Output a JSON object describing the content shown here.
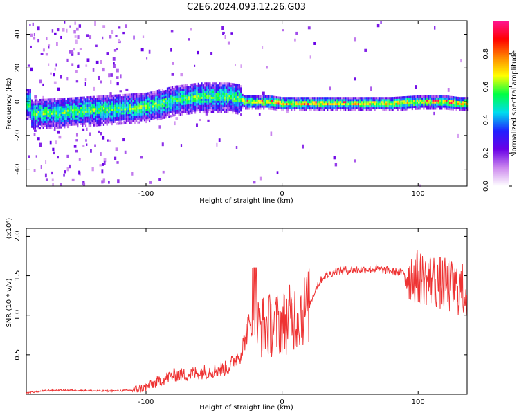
{
  "title": "C2E6.2024.093.12.26.G03",
  "chart_data": [
    {
      "type": "heatmap",
      "xlabel": "Height of straight line (km)",
      "ylabel": "Frequency (Hz)",
      "xlim": [
        -188,
        136
      ],
      "ylim": [
        -50,
        48
      ],
      "x_ticks": [
        -100,
        0,
        100
      ],
      "y_ticks": [
        -40,
        -20,
        0,
        20,
        40
      ],
      "colorbar": {
        "label": "Normalized spectral amplitude",
        "range": [
          0.0,
          1.0
        ],
        "ticks": [
          0.0,
          0.2,
          0.4,
          0.6,
          0.8
        ],
        "colors": [
          "#ffffff",
          "#cc88ee",
          "#6a00e6",
          "#2020ff",
          "#00ddee",
          "#00ff44",
          "#ffff00",
          "#ff8800",
          "#ff0000",
          "#ff1493"
        ]
      },
      "ridge": {
        "x": [
          -185,
          -160,
          -140,
          -120,
          -100,
          -90,
          -80,
          -70,
          -60,
          -50,
          -40,
          -32,
          -28,
          -20,
          -10,
          0,
          20,
          50,
          80,
          100,
          110,
          120,
          130,
          136
        ],
        "y": [
          -7,
          -6,
          -5,
          -4,
          -3,
          -1,
          1,
          2,
          3,
          3,
          3,
          2,
          0,
          0,
          0,
          -1,
          -1,
          -1,
          -1,
          0,
          0,
          0,
          -1,
          -1
        ]
      }
    },
    {
      "type": "line",
      "xlabel": "Height of straight line (km)",
      "ylabel": "SNR (10 * v/v)",
      "y_multiplier": "(x10⁴)",
      "xlim": [
        -188,
        136
      ],
      "ylim": [
        0,
        2.1
      ],
      "x_ticks": [
        -100,
        0,
        100
      ],
      "y_ticks": [
        0.5,
        1.0,
        1.5,
        2.0
      ],
      "y_tick_labels": [
        "0.5",
        "1.0",
        "1.5",
        "2.0"
      ],
      "series": [
        {
          "color": "#ee3333",
          "x": [
            -188,
            -170,
            -150,
            -130,
            -110,
            -100,
            -90,
            -80,
            -70,
            -60,
            -50,
            -40,
            -35,
            -30,
            -25,
            -20,
            -15,
            -10,
            -5,
            0,
            5,
            10,
            15,
            20,
            25,
            30,
            40,
            50,
            60,
            70,
            80,
            90,
            100,
            110,
            120,
            125,
            130,
            136
          ],
          "y": [
            0.02,
            0.05,
            0.05,
            0.04,
            0.05,
            0.09,
            0.17,
            0.24,
            0.25,
            0.28,
            0.3,
            0.33,
            0.43,
            0.53,
            0.85,
            0.85,
            0.86,
            0.87,
            0.88,
            0.89,
            0.95,
            1.0,
            1.05,
            1.12,
            1.35,
            1.48,
            1.56,
            1.57,
            1.58,
            1.58,
            1.56,
            1.53,
            1.48,
            1.45,
            1.38,
            1.35,
            1.33,
            1.3
          ]
        }
      ]
    }
  ]
}
